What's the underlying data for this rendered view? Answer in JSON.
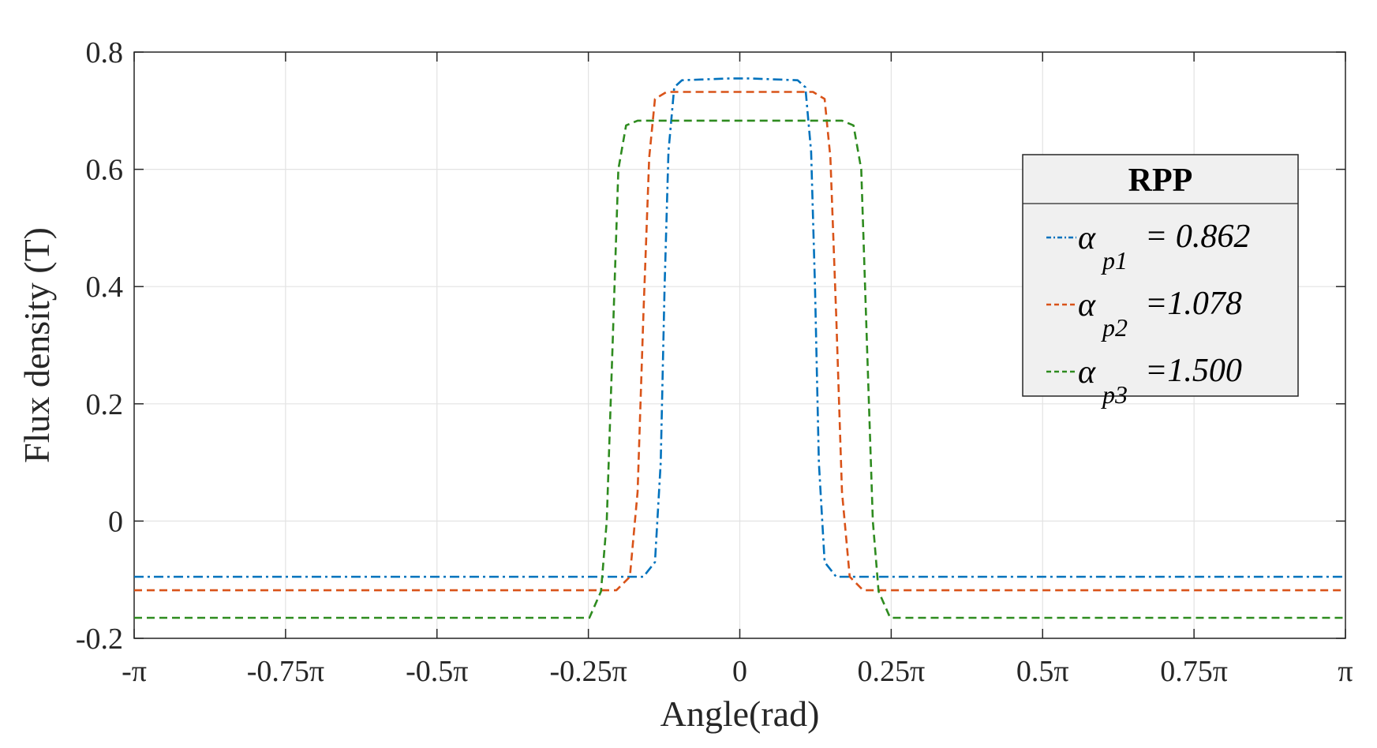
{
  "chart_data": {
    "type": "line",
    "title": "",
    "xlabel": "Angle(rad)",
    "ylabel": "Flux density (T)",
    "xlim": [
      -3.14159,
      3.14159
    ],
    "ylim": [
      -0.2,
      0.8
    ],
    "grid": true,
    "xticks": [
      {
        "value": -3.14159,
        "label": "-π"
      },
      {
        "value": -2.35619,
        "label": "-0.75π"
      },
      {
        "value": -1.5708,
        "label": "-0.5π"
      },
      {
        "value": -0.7854,
        "label": "-0.25π"
      },
      {
        "value": 0,
        "label": "0"
      },
      {
        "value": 0.7854,
        "label": "0.25π"
      },
      {
        "value": 1.5708,
        "label": "0.5π"
      },
      {
        "value": 2.35619,
        "label": "0.75π"
      },
      {
        "value": 3.14159,
        "label": "π"
      }
    ],
    "yticks": [
      {
        "value": -0.2,
        "label": "-0.2"
      },
      {
        "value": 0,
        "label": "0"
      },
      {
        "value": 0.2,
        "label": "0.2"
      },
      {
        "value": 0.4,
        "label": "0.4"
      },
      {
        "value": 0.6,
        "label": "0.6"
      },
      {
        "value": 0.8,
        "label": "0.8"
      }
    ],
    "legend": {
      "title": "RPP",
      "position": "right",
      "symbol": "α"
    },
    "series": [
      {
        "name": "αp1 = 0.862",
        "sub": "p1",
        "value_text": "= 0.862",
        "color": "#0072BD",
        "dash": "dashdot",
        "x": [
          -3.14159,
          -0.5,
          -0.44,
          -0.41,
          -0.39,
          -0.37,
          -0.34,
          -0.3,
          -0.05,
          0,
          0.05,
          0.3,
          0.34,
          0.37,
          0.39,
          0.41,
          0.44,
          0.5,
          3.14159
        ],
        "y": [
          -0.095,
          -0.095,
          -0.07,
          0.1,
          0.4,
          0.63,
          0.74,
          0.752,
          0.755,
          0.755,
          0.755,
          0.752,
          0.74,
          0.63,
          0.4,
          0.1,
          -0.07,
          -0.095,
          -0.095
        ]
      },
      {
        "name": "αp2 =1.078",
        "sub": "p2",
        "value_text": "=1.078",
        "color": "#D95319",
        "dash": "dash",
        "x": [
          -3.14159,
          -0.64,
          -0.57,
          -0.53,
          -0.5,
          -0.47,
          -0.44,
          -0.38,
          0,
          0.38,
          0.44,
          0.47,
          0.5,
          0.53,
          0.57,
          0.64,
          3.14159
        ],
        "y": [
          -0.118,
          -0.118,
          -0.095,
          0.05,
          0.35,
          0.62,
          0.72,
          0.732,
          0.732,
          0.732,
          0.72,
          0.62,
          0.35,
          0.05,
          -0.095,
          -0.118,
          -0.118
        ]
      },
      {
        "name": "αp3 =1.500",
        "sub": "p3",
        "value_text": "=1.500",
        "color": "#2E8B1F",
        "dash": "dash",
        "x": [
          -3.14159,
          -0.78,
          -0.72,
          -0.69,
          -0.66,
          -0.63,
          -0.59,
          -0.53,
          0,
          0.53,
          0.59,
          0.63,
          0.66,
          0.69,
          0.72,
          0.78,
          3.14159
        ],
        "y": [
          -0.165,
          -0.165,
          -0.12,
          0.0,
          0.3,
          0.6,
          0.675,
          0.683,
          0.683,
          0.683,
          0.675,
          0.6,
          0.3,
          0.0,
          -0.12,
          -0.165,
          -0.165
        ]
      }
    ]
  }
}
